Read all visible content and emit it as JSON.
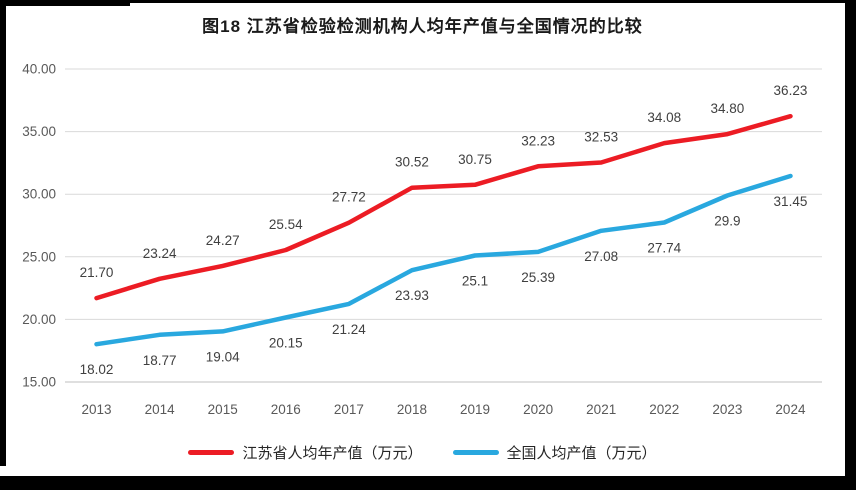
{
  "title": "图18  江苏省检验检测机构人均年产值与全国情况的比较",
  "chart_data": {
    "type": "line",
    "title": "图18  江苏省检验检测机构人均年产值与全国情况的比较",
    "categories": [
      "2013",
      "2014",
      "2015",
      "2016",
      "2017",
      "2018",
      "2019",
      "2020",
      "2021",
      "2022",
      "2023",
      "2024"
    ],
    "series": [
      {
        "name": "江苏省人均年产值（万元）",
        "color": "#ec1c24",
        "values": [
          21.7,
          23.24,
          24.27,
          25.54,
          27.72,
          30.52,
          30.75,
          32.23,
          32.53,
          34.08,
          34.8,
          36.23
        ],
        "labels": [
          "21.70",
          "23.24",
          "24.27",
          "25.54",
          "27.72",
          "30.52",
          "30.75",
          "32.23",
          "32.53",
          "34.08",
          "34.80",
          "36.23"
        ],
        "label_position": "above"
      },
      {
        "name": "全国人均产值（万元）",
        "color": "#29a8df",
        "values": [
          18.02,
          18.77,
          19.04,
          20.15,
          21.24,
          23.93,
          25.1,
          25.39,
          27.08,
          27.74,
          29.9,
          31.45
        ],
        "labels": [
          "18.02",
          "18.77",
          "19.04",
          "20.15",
          "21.24",
          "23.93",
          "25.1",
          "25.39",
          "27.08",
          "27.74",
          "29.9",
          "31.45"
        ],
        "label_position": "below"
      }
    ],
    "y_axis": {
      "min": 15,
      "max": 40,
      "step": 5,
      "tick_labels": [
        "15.00",
        "20.00",
        "25.00",
        "30.00",
        "35.00",
        "40.00"
      ]
    },
    "x_axis": {
      "tick_labels": [
        "2013",
        "2014",
        "2015",
        "2016",
        "2017",
        "2018",
        "2019",
        "2020",
        "2021",
        "2022",
        "2023",
        "2024"
      ]
    },
    "grid": true,
    "legend_position": "bottom",
    "colors": {
      "gridline": "#d9d9d9",
      "axis_line": "#bfbfbf",
      "tick_text": "#595959",
      "data_label_text": "#404040"
    }
  }
}
